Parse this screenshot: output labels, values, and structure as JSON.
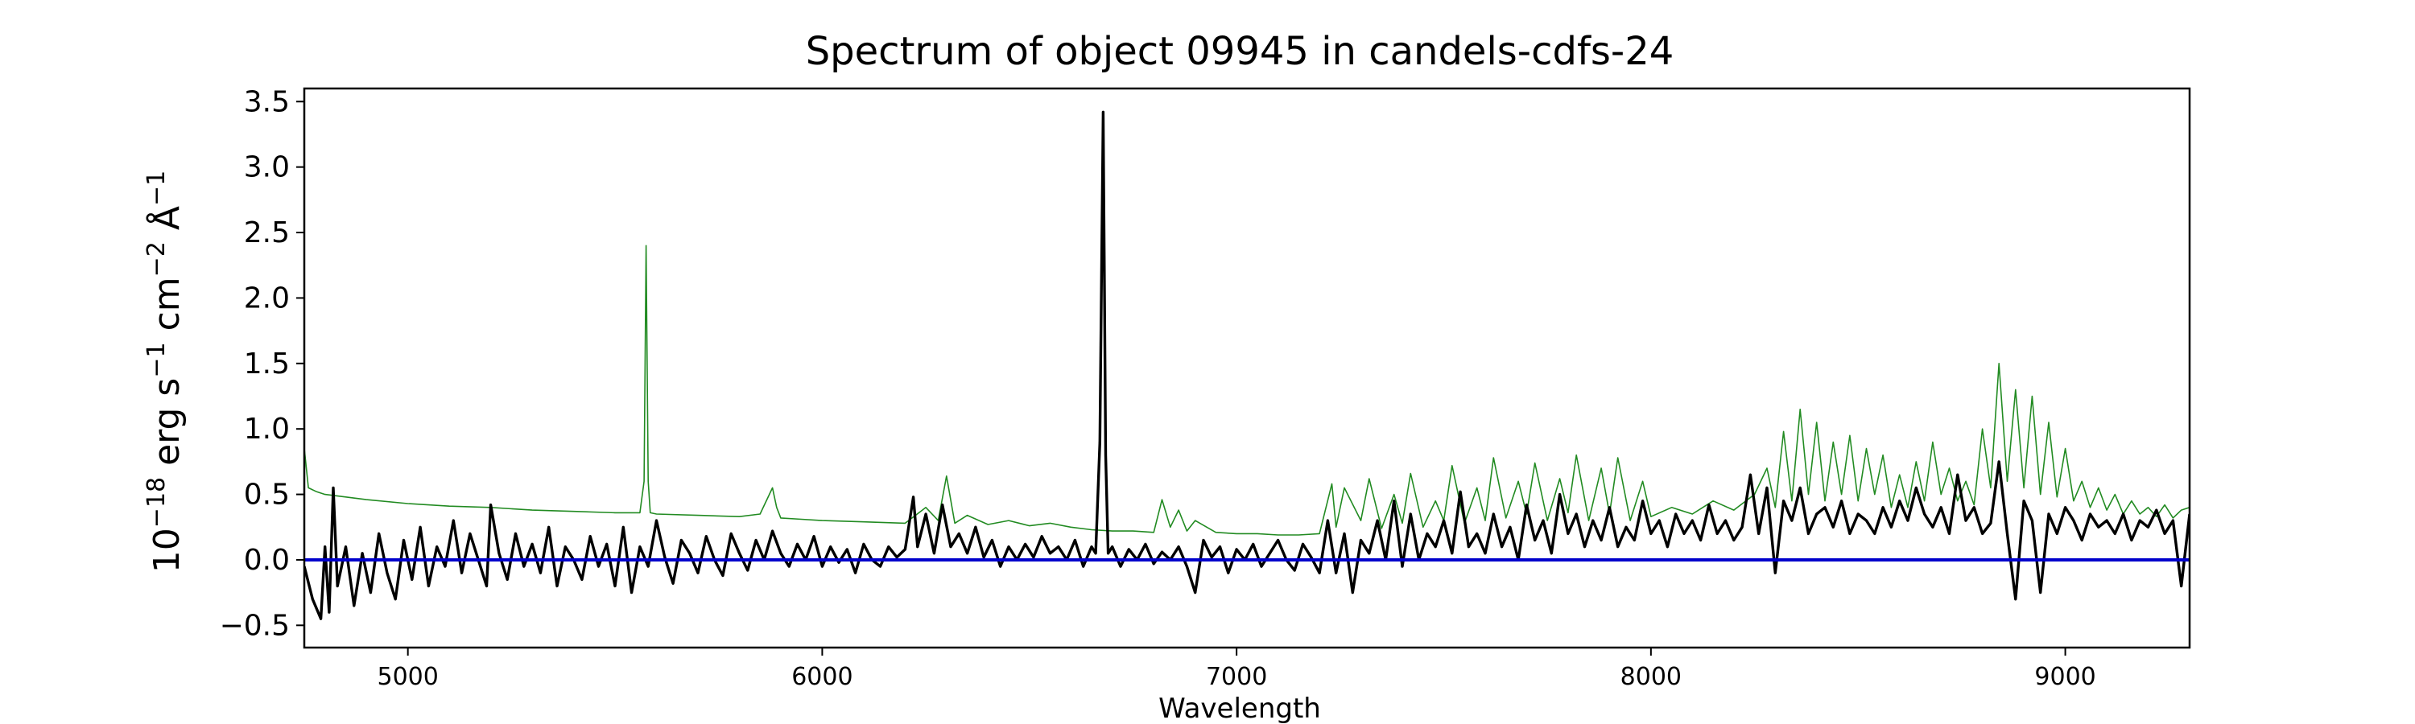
{
  "chart_data": {
    "type": "line",
    "title": "Spectrum of object 09945 in candels-cdfs-24",
    "xlabel": "Wavelength",
    "ylabel_parts": {
      "base": "10",
      "base_exp": "−18",
      "erg": " erg s",
      "s_exp": "−1",
      "cm": " cm",
      "cm_exp": "−2",
      "ang": " Å",
      "ang_exp": "−1"
    },
    "xlim": [
      4750,
      9300
    ],
    "ylim": [
      -0.67,
      3.6
    ],
    "x_ticks": [
      5000,
      6000,
      7000,
      8000,
      9000
    ],
    "x_tick_labels": [
      "5000",
      "6000",
      "7000",
      "8000",
      "9000"
    ],
    "y_ticks": [
      -0.5,
      0.0,
      0.5,
      1.0,
      1.5,
      2.0,
      2.5,
      3.0,
      3.5
    ],
    "y_tick_labels": [
      "−0.5",
      "0.0",
      "0.5",
      "1.0",
      "1.5",
      "2.0",
      "2.5",
      "3.0",
      "3.5"
    ],
    "grid": false,
    "series": [
      {
        "role": "sky",
        "color": "#228b22",
        "x": [
          4750,
          4760,
          4780,
          4800,
          4850,
          4900,
          5000,
          5100,
          5200,
          5300,
          5400,
          5500,
          5560,
          5570,
          5575,
          5580,
          5585,
          5600,
          5700,
          5800,
          5850,
          5880,
          5890,
          5900,
          5950,
          6000,
          6100,
          6200,
          6250,
          6280,
          6300,
          6320,
          6350,
          6400,
          6450,
          6500,
          6550,
          6600,
          6650,
          6700,
          6750,
          6800,
          6820,
          6840,
          6860,
          6880,
          6900,
          6950,
          7000,
          7050,
          7100,
          7150,
          7200,
          7230,
          7240,
          7260,
          7300,
          7320,
          7350,
          7380,
          7400,
          7420,
          7450,
          7480,
          7500,
          7520,
          7550,
          7580,
          7600,
          7620,
          7650,
          7680,
          7700,
          7720,
          7750,
          7780,
          7800,
          7820,
          7850,
          7880,
          7900,
          7920,
          7950,
          7980,
          8000,
          8050,
          8100,
          8150,
          8200,
          8250,
          8280,
          8300,
          8320,
          8340,
          8360,
          8380,
          8400,
          8420,
          8440,
          8460,
          8480,
          8500,
          8520,
          8540,
          8560,
          8580,
          8600,
          8620,
          8640,
          8660,
          8680,
          8700,
          8720,
          8740,
          8760,
          8780,
          8800,
          8820,
          8840,
          8860,
          8880,
          8900,
          8920,
          8940,
          8960,
          8980,
          9000,
          9020,
          9040,
          9060,
          9080,
          9100,
          9120,
          9140,
          9160,
          9180,
          9200,
          9220,
          9240,
          9260,
          9280,
          9300
        ],
        "y": [
          0.85,
          0.55,
          0.52,
          0.5,
          0.48,
          0.46,
          0.43,
          0.41,
          0.4,
          0.38,
          0.37,
          0.36,
          0.36,
          0.6,
          2.4,
          0.6,
          0.36,
          0.35,
          0.34,
          0.33,
          0.35,
          0.55,
          0.4,
          0.32,
          0.31,
          0.3,
          0.29,
          0.28,
          0.4,
          0.3,
          0.64,
          0.28,
          0.34,
          0.27,
          0.3,
          0.26,
          0.28,
          0.25,
          0.23,
          0.22,
          0.22,
          0.21,
          0.46,
          0.25,
          0.38,
          0.22,
          0.3,
          0.21,
          0.2,
          0.2,
          0.19,
          0.19,
          0.2,
          0.58,
          0.25,
          0.55,
          0.3,
          0.62,
          0.24,
          0.5,
          0.28,
          0.66,
          0.25,
          0.45,
          0.3,
          0.72,
          0.28,
          0.55,
          0.3,
          0.78,
          0.32,
          0.6,
          0.35,
          0.74,
          0.3,
          0.62,
          0.36,
          0.8,
          0.3,
          0.7,
          0.35,
          0.78,
          0.3,
          0.6,
          0.33,
          0.4,
          0.35,
          0.45,
          0.38,
          0.5,
          0.7,
          0.4,
          0.98,
          0.45,
          1.15,
          0.5,
          1.05,
          0.45,
          0.9,
          0.5,
          0.95,
          0.45,
          0.85,
          0.5,
          0.8,
          0.4,
          0.65,
          0.4,
          0.75,
          0.45,
          0.9,
          0.5,
          0.7,
          0.45,
          0.6,
          0.42,
          1.0,
          0.55,
          1.5,
          0.6,
          1.3,
          0.55,
          1.25,
          0.5,
          1.05,
          0.48,
          0.85,
          0.45,
          0.6,
          0.4,
          0.55,
          0.38,
          0.5,
          0.35,
          0.45,
          0.35,
          0.4,
          0.33,
          0.42,
          0.32,
          0.38,
          0.4
        ]
      },
      {
        "role": "spectrum",
        "color": "#000000",
        "x": [
          4750,
          4770,
          4790,
          4800,
          4810,
          4820,
          4830,
          4850,
          4870,
          4890,
          4910,
          4930,
          4950,
          4970,
          4990,
          5010,
          5030,
          5050,
          5070,
          5090,
          5110,
          5130,
          5150,
          5170,
          5190,
          5200,
          5220,
          5240,
          5260,
          5280,
          5300,
          5320,
          5340,
          5360,
          5380,
          5400,
          5420,
          5440,
          5460,
          5480,
          5500,
          5520,
          5540,
          5560,
          5580,
          5600,
          5620,
          5640,
          5660,
          5680,
          5700,
          5720,
          5740,
          5760,
          5780,
          5800,
          5820,
          5840,
          5860,
          5880,
          5900,
          5920,
          5940,
          5960,
          5980,
          6000,
          6020,
          6040,
          6060,
          6080,
          6100,
          6120,
          6140,
          6160,
          6180,
          6200,
          6220,
          6230,
          6250,
          6270,
          6290,
          6310,
          6330,
          6350,
          6370,
          6390,
          6410,
          6430,
          6450,
          6470,
          6490,
          6510,
          6530,
          6550,
          6570,
          6590,
          6610,
          6630,
          6650,
          6660,
          6670,
          6678,
          6684,
          6690,
          6700,
          6720,
          6740,
          6760,
          6780,
          6800,
          6820,
          6840,
          6860,
          6880,
          6900,
          6920,
          6940,
          6960,
          6980,
          7000,
          7020,
          7040,
          7060,
          7080,
          7100,
          7120,
          7140,
          7160,
          7180,
          7200,
          7220,
          7240,
          7260,
          7280,
          7300,
          7320,
          7340,
          7360,
          7380,
          7400,
          7420,
          7440,
          7460,
          7480,
          7500,
          7520,
          7540,
          7560,
          7580,
          7600,
          7620,
          7640,
          7660,
          7680,
          7700,
          7720,
          7740,
          7760,
          7780,
          7800,
          7820,
          7840,
          7860,
          7880,
          7900,
          7920,
          7940,
          7960,
          7980,
          8000,
          8020,
          8040,
          8060,
          8080,
          8100,
          8120,
          8140,
          8160,
          8180,
          8200,
          8220,
          8240,
          8260,
          8280,
          8300,
          8320,
          8340,
          8360,
          8380,
          8400,
          8420,
          8440,
          8460,
          8480,
          8500,
          8520,
          8540,
          8560,
          8580,
          8600,
          8620,
          8640,
          8660,
          8680,
          8700,
          8720,
          8740,
          8760,
          8780,
          8800,
          8820,
          8840,
          8860,
          8880,
          8900,
          8920,
          8940,
          8960,
          8980,
          9000,
          9020,
          9040,
          9060,
          9080,
          9100,
          9120,
          9140,
          9160,
          9180,
          9200,
          9220,
          9240,
          9260,
          9280,
          9300
        ],
        "y": [
          -0.05,
          -0.3,
          -0.45,
          0.1,
          -0.4,
          0.55,
          -0.2,
          0.1,
          -0.35,
          0.05,
          -0.25,
          0.2,
          -0.1,
          -0.3,
          0.15,
          -0.15,
          0.25,
          -0.2,
          0.1,
          -0.05,
          0.3,
          -0.1,
          0.2,
          0.0,
          -0.2,
          0.42,
          0.05,
          -0.15,
          0.2,
          -0.05,
          0.12,
          -0.1,
          0.25,
          -0.2,
          0.1,
          0.0,
          -0.15,
          0.18,
          -0.05,
          0.12,
          -0.2,
          0.25,
          -0.25,
          0.1,
          -0.05,
          0.3,
          0.02,
          -0.18,
          0.15,
          0.05,
          -0.1,
          0.18,
          0.0,
          -0.12,
          0.2,
          0.05,
          -0.08,
          0.15,
          0.0,
          0.22,
          0.05,
          -0.05,
          0.12,
          0.0,
          0.18,
          -0.05,
          0.1,
          -0.02,
          0.08,
          -0.1,
          0.12,
          0.0,
          -0.05,
          0.1,
          0.02,
          0.08,
          0.48,
          0.1,
          0.35,
          0.05,
          0.42,
          0.1,
          0.2,
          0.05,
          0.25,
          0.02,
          0.15,
          -0.05,
          0.1,
          0.0,
          0.12,
          0.02,
          0.18,
          0.05,
          0.1,
          0.0,
          0.15,
          -0.05,
          0.1,
          0.05,
          0.9,
          3.42,
          0.8,
          0.05,
          0.1,
          -0.05,
          0.08,
          0.0,
          0.12,
          -0.03,
          0.06,
          0.0,
          0.1,
          -0.05,
          -0.25,
          0.15,
          0.02,
          0.1,
          -0.1,
          0.08,
          0.0,
          0.12,
          -0.05,
          0.05,
          0.15,
          0.0,
          -0.08,
          0.12,
          0.02,
          -0.1,
          0.3,
          -0.1,
          0.2,
          -0.25,
          0.15,
          0.05,
          0.3,
          0.0,
          0.45,
          -0.05,
          0.35,
          0.0,
          0.2,
          0.1,
          0.3,
          0.05,
          0.52,
          0.1,
          0.2,
          0.05,
          0.35,
          0.1,
          0.25,
          0.0,
          0.42,
          0.15,
          0.3,
          0.05,
          0.5,
          0.2,
          0.35,
          0.1,
          0.3,
          0.15,
          0.4,
          0.1,
          0.25,
          0.15,
          0.45,
          0.2,
          0.3,
          0.1,
          0.35,
          0.2,
          0.3,
          0.15,
          0.42,
          0.2,
          0.3,
          0.15,
          0.25,
          0.65,
          0.2,
          0.55,
          -0.1,
          0.45,
          0.3,
          0.55,
          0.2,
          0.35,
          0.4,
          0.25,
          0.45,
          0.2,
          0.35,
          0.3,
          0.2,
          0.4,
          0.25,
          0.45,
          0.3,
          0.55,
          0.35,
          0.25,
          0.4,
          0.2,
          0.65,
          0.3,
          0.4,
          0.2,
          0.28,
          0.75,
          0.2,
          -0.3,
          0.45,
          0.3,
          -0.25,
          0.35,
          0.2,
          0.4,
          0.3,
          0.15,
          0.35,
          0.25,
          0.3,
          0.2,
          0.35,
          0.15,
          0.3,
          0.25,
          0.38,
          0.2,
          0.3,
          -0.2,
          0.35
        ]
      }
    ],
    "zero_line": {
      "y": 0.0,
      "color": "#0000cc"
    }
  }
}
